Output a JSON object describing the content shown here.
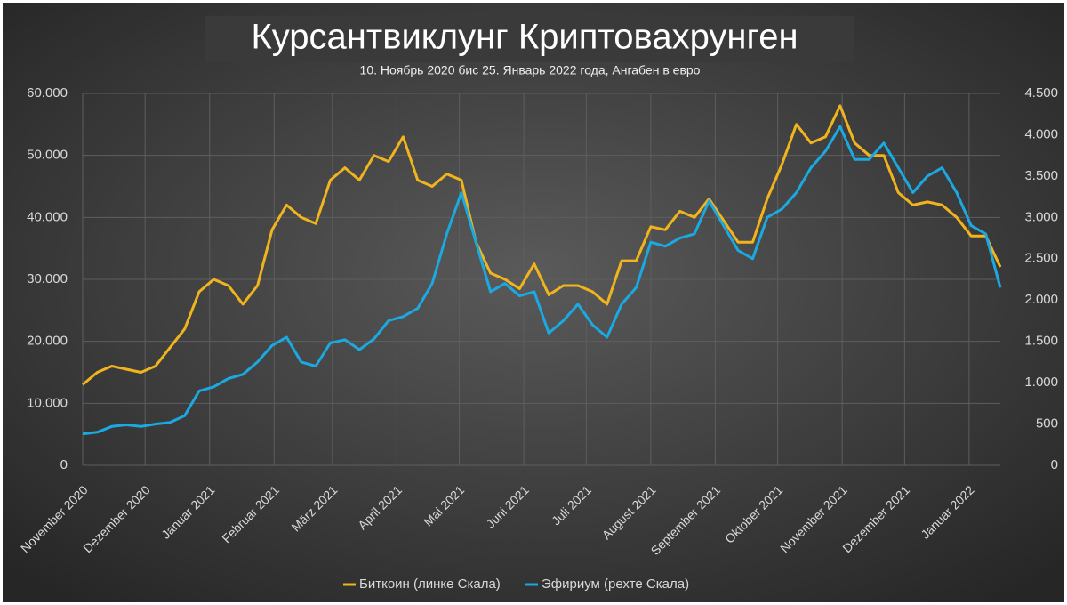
{
  "chart_data": {
    "type": "line",
    "title": "Курсантвиклунг Криптовахрунген",
    "subtitle": "10. Ноябрь 2020 бис 25. Январь 2022 года, Ангабен в евро",
    "x": [
      "2020-11-10",
      "2020-11-17",
      "2020-11-24",
      "2020-12-01",
      "2020-12-08",
      "2020-12-15",
      "2020-12-22",
      "2020-12-29",
      "2021-01-05",
      "2021-01-12",
      "2021-01-19",
      "2021-01-26",
      "2021-02-02",
      "2021-02-09",
      "2021-02-16",
      "2021-02-23",
      "2021-03-02",
      "2021-03-09",
      "2021-03-16",
      "2021-03-23",
      "2021-03-30",
      "2021-04-06",
      "2021-04-13",
      "2021-04-20",
      "2021-04-27",
      "2021-05-04",
      "2021-05-11",
      "2021-05-18",
      "2021-05-25",
      "2021-06-01",
      "2021-06-08",
      "2021-06-15",
      "2021-06-22",
      "2021-06-29",
      "2021-07-06",
      "2021-07-13",
      "2021-07-20",
      "2021-07-27",
      "2021-08-03",
      "2021-08-10",
      "2021-08-17",
      "2021-08-24",
      "2021-08-31",
      "2021-09-07",
      "2021-09-14",
      "2021-09-21",
      "2021-09-28",
      "2021-10-05",
      "2021-10-12",
      "2021-10-19",
      "2021-10-26",
      "2021-11-02",
      "2021-11-09",
      "2021-11-16",
      "2021-11-23",
      "2021-11-30",
      "2021-12-07",
      "2021-12-14",
      "2021-12-21",
      "2021-12-28",
      "2022-01-04",
      "2022-01-11",
      "2022-01-18",
      "2022-01-25"
    ],
    "series": [
      {
        "name": "Биткоин (линке Скала)",
        "color": "#f0b51e",
        "axis": "y",
        "values": [
          13000,
          15000,
          16000,
          15500,
          15000,
          16000,
          19000,
          22000,
          28000,
          30000,
          29000,
          26000,
          29000,
          38000,
          42000,
          40000,
          39000,
          46000,
          48000,
          46000,
          50000,
          49000,
          53000,
          46000,
          45000,
          47000,
          46000,
          36000,
          31000,
          30000,
          28500,
          32500,
          27500,
          29000,
          29000,
          28000,
          26000,
          33000,
          33000,
          38500,
          38000,
          41000,
          40000,
          43000,
          39500,
          36000,
          36000,
          43000,
          48500,
          55000,
          52000,
          53000,
          58000,
          52000,
          50000,
          50000,
          44000,
          42000,
          42500,
          42000,
          40000,
          37000,
          37000,
          32000
        ]
      },
      {
        "name": "Эфириум (рехте Скала)",
        "color": "#1ba9e1",
        "axis": "y2",
        "values": [
          380,
          400,
          470,
          490,
          470,
          500,
          520,
          600,
          900,
          950,
          1050,
          1100,
          1250,
          1450,
          1550,
          1250,
          1200,
          1480,
          1520,
          1400,
          1530,
          1750,
          1800,
          1900,
          2200,
          2800,
          3300,
          2700,
          2100,
          2200,
          2050,
          2100,
          1600,
          1750,
          1950,
          1700,
          1550,
          1950,
          2150,
          2700,
          2650,
          2750,
          2800,
          3200,
          2900,
          2600,
          2500,
          3000,
          3100,
          3300,
          3600,
          3800,
          4100,
          3700,
          3700,
          3900,
          3600,
          3300,
          3500,
          3600,
          3300,
          2900,
          2800,
          2150
        ]
      }
    ],
    "xlim": [
      "2020-11-10",
      "2022-01-25"
    ],
    "xticks": [
      {
        "value": "2020-11-10",
        "label": "November 2020"
      },
      {
        "value": "2020-12-10",
        "label": "Dezember 2020"
      },
      {
        "value": "2021-01-10",
        "label": "Januar 2021"
      },
      {
        "value": "2021-02-10",
        "label": "Februar 2021"
      },
      {
        "value": "2021-03-10",
        "label": "März 2021"
      },
      {
        "value": "2021-04-10",
        "label": "April 2021"
      },
      {
        "value": "2021-05-10",
        "label": "Mai 2021"
      },
      {
        "value": "2021-06-10",
        "label": "Juni 2021"
      },
      {
        "value": "2021-07-10",
        "label": "Juli 2021"
      },
      {
        "value": "2021-08-10",
        "label": "August 2021"
      },
      {
        "value": "2021-09-10",
        "label": "September 2021"
      },
      {
        "value": "2021-10-10",
        "label": "Oktober 2021"
      },
      {
        "value": "2021-11-10",
        "label": "November 2021"
      },
      {
        "value": "2021-12-10",
        "label": "Dezember 2021"
      },
      {
        "value": "2022-01-10",
        "label": "Januar 2022"
      }
    ],
    "ylim": [
      0,
      60000
    ],
    "yticks": [
      0,
      {
        "value": 10000,
        "label": "10.000"
      },
      {
        "value": 20000,
        "label": "20.000"
      },
      {
        "value": 30000,
        "label": "30.000"
      },
      {
        "value": 40000,
        "label": "40.000"
      },
      {
        "value": 50000,
        "label": "50.000"
      },
      {
        "value": 60000,
        "label": "60.000"
      }
    ],
    "y2lim": [
      0,
      4500
    ],
    "y2ticks": [
      0,
      500,
      {
        "value": 1000,
        "label": "1.000"
      },
      {
        "value": 1500,
        "label": "1.500"
      },
      {
        "value": 2000,
        "label": "2.000"
      },
      {
        "value": 2500,
        "label": "2.500"
      },
      {
        "value": 3000,
        "label": "3.000"
      },
      {
        "value": 3500,
        "label": "3.500"
      },
      {
        "value": 4000,
        "label": "4.000"
      },
      {
        "value": 4500,
        "label": "4.500"
      }
    ],
    "grid": true,
    "legend": "bottom"
  }
}
